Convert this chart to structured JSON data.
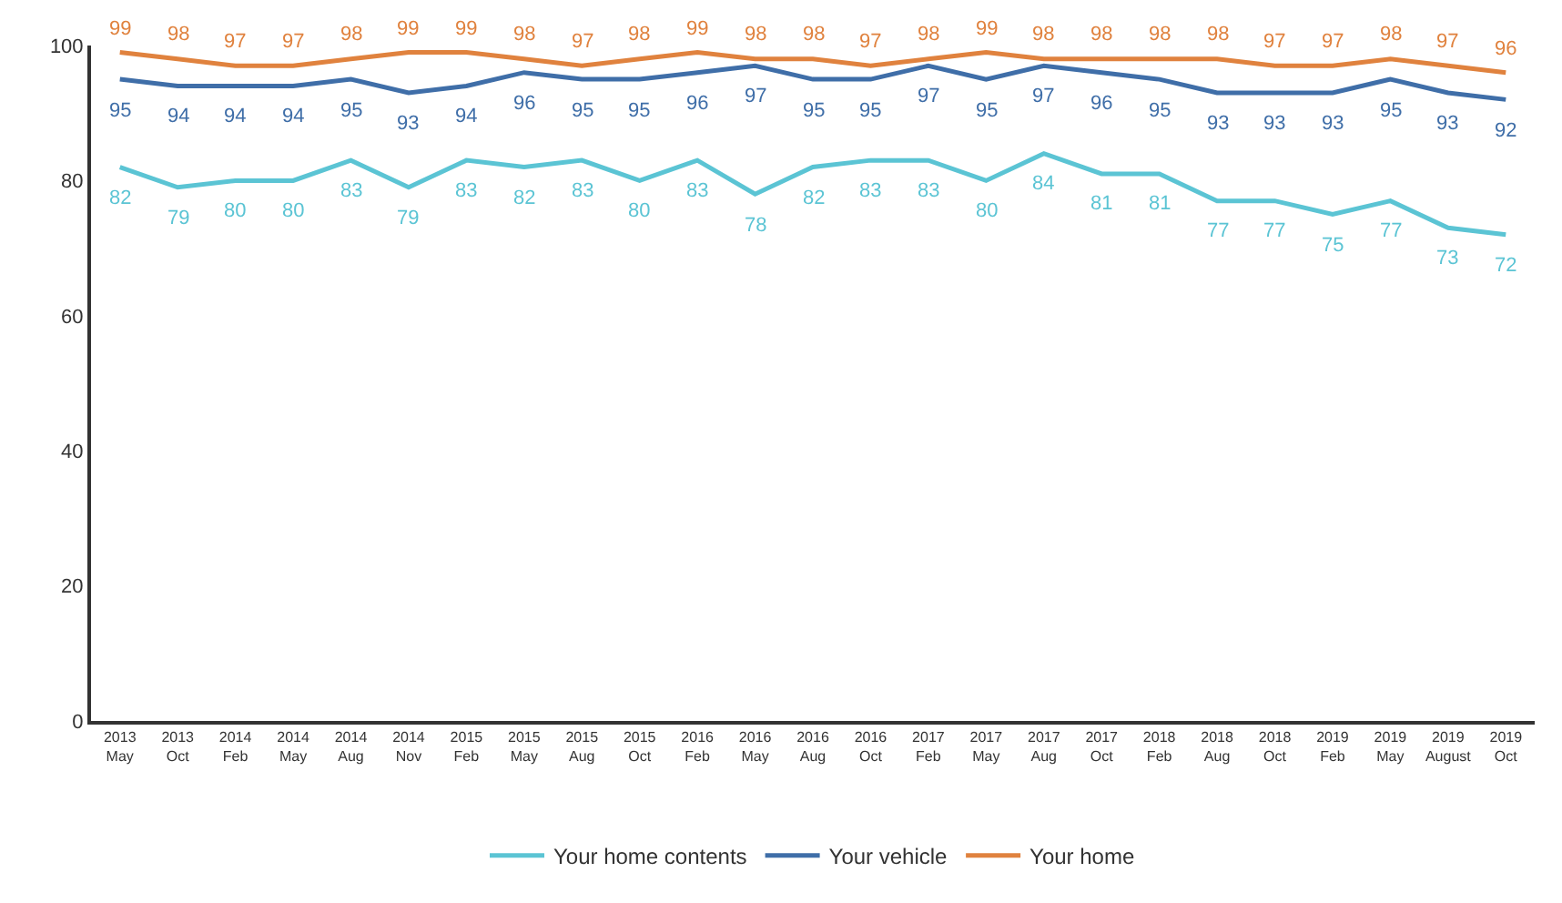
{
  "chart_data": {
    "type": "line",
    "categories": [
      "2013\nMay",
      "2013\nOct",
      "2014\nFeb",
      "2014\nMay",
      "2014\nAug",
      "2014\nNov",
      "2015\nFeb",
      "2015\nMay",
      "2015\nAug",
      "2015\nOct",
      "2016\nFeb",
      "2016\nMay",
      "2016\nAug",
      "2016\nOct",
      "2017\nFeb",
      "2017\nMay",
      "2017\nAug",
      "2017\nOct",
      "2018\nFeb",
      "2018\nAug",
      "2018\nOct",
      "2019\nFeb",
      "2019\nMay",
      "2019\nAugust",
      "2019\nOct"
    ],
    "series": [
      {
        "name": "Your home contents",
        "color": "#5bc4d4",
        "values": [
          82,
          79,
          80,
          80,
          83,
          79,
          83,
          82,
          83,
          80,
          83,
          78,
          82,
          83,
          83,
          80,
          84,
          81,
          81,
          77,
          77,
          75,
          77,
          73,
          72
        ]
      },
      {
        "name": "Your vehicle",
        "color": "#3f6ea8",
        "values": [
          95,
          94,
          94,
          94,
          95,
          93,
          94,
          96,
          95,
          95,
          96,
          97,
          95,
          95,
          97,
          95,
          97,
          96,
          95,
          93,
          93,
          93,
          95,
          93,
          92
        ]
      },
      {
        "name": "Your home",
        "color": "#e0823e",
        "values": [
          99,
          98,
          97,
          97,
          98,
          99,
          99,
          98,
          97,
          98,
          99,
          98,
          98,
          97,
          98,
          99,
          98,
          98,
          98,
          98,
          97,
          97,
          98,
          97,
          96
        ]
      }
    ],
    "ylim": [
      0,
      100
    ],
    "yticks": [
      0,
      20,
      40,
      60,
      80,
      100
    ],
    "grid": false,
    "legend": "bottom",
    "marker": "none",
    "line_style": "solid",
    "data_labels": true
  }
}
